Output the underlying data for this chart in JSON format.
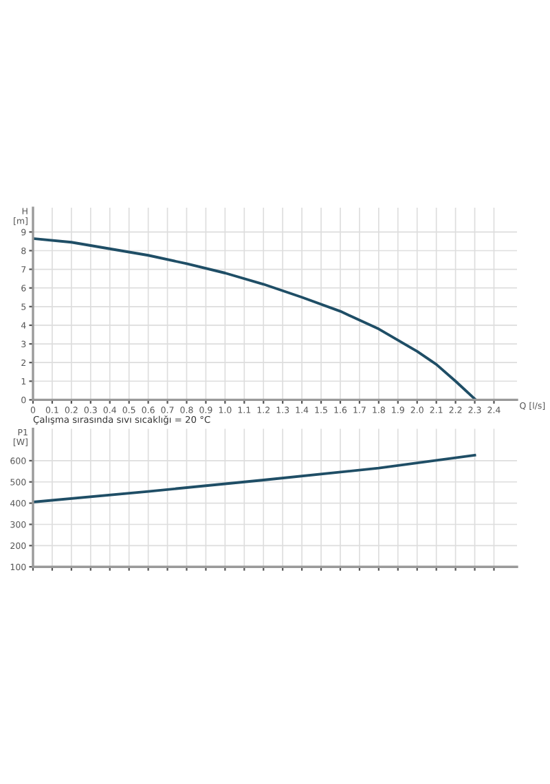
{
  "chart_data": [
    {
      "type": "line",
      "xlabel": "Q [l/s]",
      "ylabel": "H\n[m]",
      "x": [
        0,
        0.2,
        0.4,
        0.6,
        0.8,
        1.0,
        1.2,
        1.4,
        1.6,
        1.8,
        1.9,
        2.0,
        2.1,
        2.2,
        2.3
      ],
      "series": [
        {
          "color": "#1f4e66",
          "values": [
            8.65,
            8.45,
            8.1,
            7.75,
            7.3,
            6.8,
            6.2,
            5.5,
            4.75,
            3.8,
            3.2,
            2.6,
            1.9,
            1.0,
            0.05
          ]
        }
      ],
      "xlim": [
        0,
        2.52
      ],
      "xticks": [
        0,
        0.1,
        0.2,
        0.3,
        0.4,
        0.5,
        0.6,
        0.7,
        0.8,
        0.9,
        {
          "value": 1,
          "label": "1.0"
        },
        1.1,
        1.2,
        1.3,
        1.4,
        1.5,
        1.6,
        1.7,
        1.8,
        1.9,
        {
          "value": 2,
          "label": "2.0"
        },
        2.1,
        2.2,
        2.3,
        2.4
      ],
      "ylim": [
        0,
        10.3
      ],
      "yticks": [
        0,
        1,
        2,
        3,
        4,
        5,
        6,
        7,
        8,
        9
      ],
      "grid": true,
      "marker": "none",
      "line_style": "solid"
    },
    {
      "type": "line",
      "ylabel": "P1\n[W]",
      "x": [
        0,
        0.6,
        1.2,
        1.8,
        2.3
      ],
      "series": [
        {
          "color": "#1f4e66",
          "values": [
            405,
            455,
            509,
            565,
            626
          ]
        }
      ],
      "xlim": [
        0,
        2.52
      ],
      "xticks": [
        0,
        0.1,
        0.2,
        0.3,
        0.4,
        0.5,
        0.6,
        0.7,
        0.8,
        0.9,
        1.0,
        1.1,
        1.2,
        1.3,
        1.4,
        1.5,
        1.6,
        1.7,
        1.8,
        1.9,
        2.0,
        2.1,
        2.2,
        2.3,
        2.4
      ],
      "ylim": [
        100,
        750
      ],
      "yticks": [
        100,
        200,
        300,
        400,
        500,
        600
      ],
      "tick_labels": "y",
      "grid": true,
      "marker": "none",
      "line_style": "solid",
      "annotations": [
        "Çalışma sırasında sıvı sıcaklığı = 20 °C"
      ]
    }
  ]
}
